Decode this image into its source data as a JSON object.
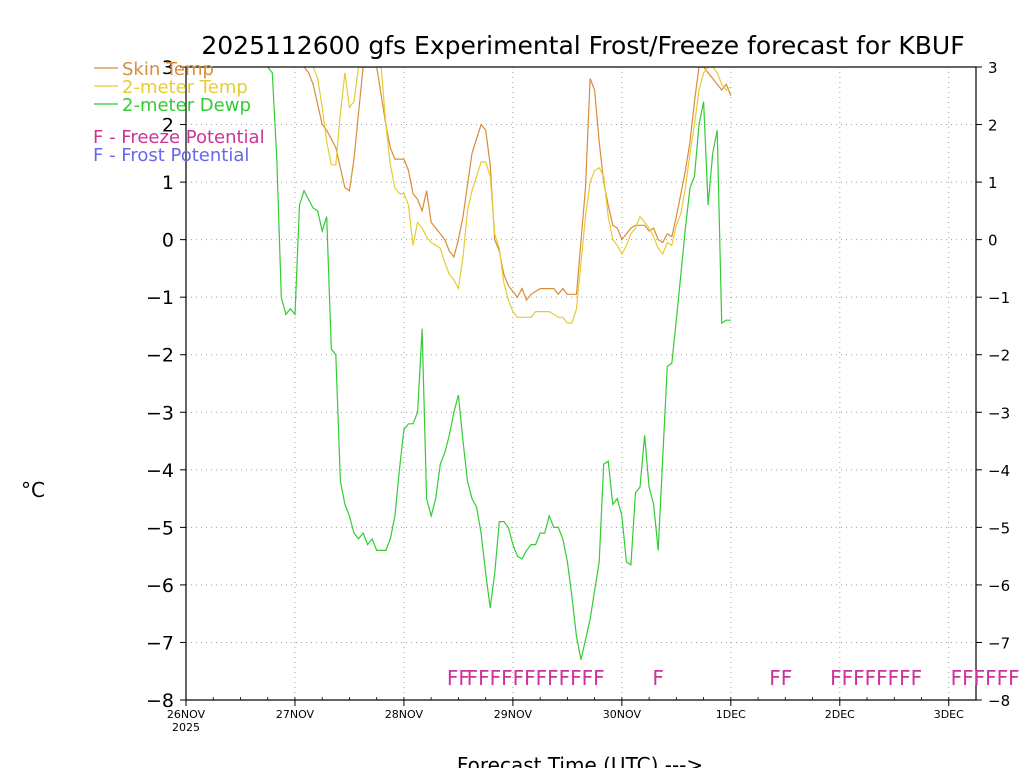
{
  "chart_data": {
    "type": "line",
    "title": "2025112600 gfs Experimental Frost/Freeze forecast for KBUF",
    "ylabel_unit": "°C",
    "xlabel": "Forecast Time (UTC) --->",
    "ylim": [
      -8,
      3
    ],
    "xlim_hours": [
      0,
      174
    ],
    "y_ticks": [
      3,
      2,
      1,
      0,
      -1,
      -2,
      -3,
      -4,
      -5,
      -6,
      -7,
      -8
    ],
    "y_tick_labels": [
      "3",
      "2",
      "1",
      "0",
      "−1",
      "−2",
      "−3",
      "−4",
      "−5",
      "−6",
      "−7",
      "−8"
    ],
    "x_ticks": [
      {
        "hour": 0,
        "label": "26NOV",
        "sublabel": "2025"
      },
      {
        "hour": 24,
        "label": "27NOV"
      },
      {
        "hour": 48,
        "label": "28NOV"
      },
      {
        "hour": 72,
        "label": "29NOV"
      },
      {
        "hour": 96,
        "label": "30NOV"
      },
      {
        "hour": 120,
        "label": "1DEC"
      },
      {
        "hour": 144,
        "label": "2DEC"
      },
      {
        "hour": 168,
        "label": "3DEC"
      }
    ],
    "legend": [
      {
        "label": "Skin Temp",
        "color": "#d98c3a"
      },
      {
        "label": "2-meter Temp",
        "color": "#e6cc33"
      },
      {
        "label": "2-meter Dewp",
        "color": "#33cc33"
      }
    ],
    "potential_legend": [
      {
        "letter": "F",
        "label": "- Freeze Potential",
        "color": "#cc3399"
      },
      {
        "letter": "F",
        "label": "- Frost Potential",
        "color": "#6666ee"
      }
    ],
    "series": [
      {
        "name": "Skin Temp",
        "color": "#d98c3a",
        "x": [
          26,
          27,
          28,
          30,
          31,
          33,
          35,
          36,
          37,
          39,
          40,
          42,
          44,
          45,
          46,
          48,
          49,
          50,
          51,
          52,
          53,
          54,
          56,
          57,
          58,
          59,
          60,
          61,
          63,
          65,
          66,
          67,
          68,
          69,
          70,
          71,
          72,
          73,
          74,
          75,
          76,
          77,
          78,
          79,
          80,
          81,
          82,
          83,
          84,
          86,
          88,
          89,
          90,
          91,
          92,
          93,
          94,
          95,
          96,
          97,
          98,
          99,
          100,
          101,
          102,
          103,
          104,
          105,
          106,
          107,
          108,
          109,
          110,
          111,
          112,
          113,
          114,
          115,
          116,
          117,
          118,
          119,
          120
        ],
        "values": [
          3,
          2.9,
          2.7,
          2.0,
          1.9,
          1.6,
          0.9,
          0.85,
          1.4,
          3.0,
          3.0,
          3.0,
          2.0,
          1.6,
          1.4,
          1.4,
          1.2,
          0.8,
          0.7,
          0.5,
          0.85,
          0.3,
          0.1,
          0.0,
          -0.2,
          -0.3,
          0.0,
          0.4,
          1.5,
          2.0,
          1.9,
          1.3,
          0.0,
          -0.2,
          -0.6,
          -0.8,
          -0.9,
          -1.0,
          -0.85,
          -1.05,
          -0.95,
          -0.9,
          -0.85,
          -0.85,
          -0.85,
          -0.85,
          -0.95,
          -0.85,
          -0.95,
          -0.95,
          0.9,
          2.8,
          2.6,
          1.7,
          1.0,
          0.6,
          0.25,
          0.2,
          0.0,
          0.1,
          0.2,
          0.25,
          0.25,
          0.25,
          0.15,
          0.2,
          0.0,
          -0.05,
          0.1,
          0.05,
          0.4,
          0.8,
          1.2,
          1.7,
          2.4,
          3.0,
          3.0,
          2.9,
          2.8,
          2.7,
          2.6,
          2.7,
          2.5
        ]
      },
      {
        "name": "2-meter Temp",
        "color": "#e6cc33",
        "x": [
          28,
          29,
          30,
          31,
          32,
          33,
          34,
          35,
          36,
          37,
          38,
          39,
          40,
          41,
          42,
          43,
          44,
          45,
          46,
          47,
          48,
          49,
          50,
          51,
          52,
          53,
          54,
          56,
          57,
          58,
          59,
          60,
          61,
          62,
          63,
          64,
          65,
          66,
          67,
          68,
          69,
          70,
          71,
          72,
          73,
          74,
          75,
          76,
          77,
          78,
          79,
          80,
          81,
          82,
          83,
          84,
          85,
          86,
          88,
          89,
          90,
          91,
          92,
          93,
          94,
          95,
          96,
          97,
          98,
          99,
          100,
          101,
          102,
          103,
          104,
          105,
          106,
          107,
          108,
          109,
          110,
          111,
          112,
          113,
          114,
          115,
          116,
          117,
          118,
          119,
          120
        ],
        "values": [
          3,
          2.8,
          2.3,
          1.7,
          1.3,
          1.3,
          2.2,
          2.9,
          2.3,
          2.4,
          3,
          3,
          3,
          3,
          3,
          3,
          2.0,
          1.3,
          0.9,
          0.8,
          0.8,
          0.6,
          -0.1,
          0.3,
          0.2,
          0.05,
          -0.05,
          -0.15,
          -0.4,
          -0.6,
          -0.7,
          -0.85,
          -0.3,
          0.5,
          0.85,
          1.1,
          1.35,
          1.35,
          1.1,
          0.1,
          -0.15,
          -0.75,
          -1.05,
          -1.25,
          -1.35,
          -1.35,
          -1.35,
          -1.35,
          -1.25,
          -1.25,
          -1.25,
          -1.25,
          -1.3,
          -1.35,
          -1.35,
          -1.45,
          -1.45,
          -1.2,
          0.4,
          1.0,
          1.2,
          1.25,
          1.1,
          0.4,
          0.0,
          -0.1,
          -0.25,
          -0.1,
          0.1,
          0.2,
          0.4,
          0.3,
          0.2,
          0.05,
          -0.15,
          -0.25,
          -0.05,
          -0.1,
          0.25,
          0.45,
          0.9,
          1.5,
          2.0,
          2.6,
          2.9,
          3,
          3,
          2.9,
          2.7,
          2.6,
          2.65
        ]
      },
      {
        "name": "2-meter Dewp",
        "color": "#33cc33",
        "x": [
          18,
          19,
          20,
          21,
          22,
          23,
          24,
          25,
          26,
          27,
          28,
          29,
          30,
          31,
          32,
          33,
          34,
          35,
          36,
          37,
          38,
          39,
          40,
          41,
          42,
          43,
          44,
          45,
          46,
          47,
          48,
          49,
          50,
          51,
          52,
          53,
          54,
          55,
          56,
          57,
          58,
          59,
          60,
          61,
          62,
          63,
          64,
          65,
          66,
          67,
          68,
          69,
          70,
          71,
          72,
          73,
          74,
          75,
          76,
          77,
          78,
          79,
          80,
          81,
          82,
          83,
          84,
          85,
          86,
          87,
          88,
          89,
          90,
          91,
          92,
          93,
          94,
          95,
          96,
          97,
          98,
          99,
          100,
          101,
          102,
          103,
          104,
          105,
          106,
          107,
          108,
          109,
          110,
          111,
          112,
          113,
          114,
          115,
          116,
          117,
          118,
          119,
          120
        ],
        "values": [
          3,
          2.9,
          1.4,
          -1.0,
          -1.3,
          -1.2,
          -1.3,
          0.6,
          0.85,
          0.7,
          0.55,
          0.5,
          0.15,
          0.4,
          -1.9,
          -2.0,
          -4.2,
          -4.6,
          -4.8,
          -5.1,
          -5.2,
          -5.1,
          -5.3,
          -5.2,
          -5.4,
          -5.4,
          -5.4,
          -5.2,
          -4.8,
          -4.0,
          -3.3,
          -3.2,
          -3.2,
          -3.0,
          -1.55,
          -4.5,
          -4.8,
          -4.5,
          -3.9,
          -3.7,
          -3.4,
          -3.0,
          -2.7,
          -3.5,
          -4.2,
          -4.5,
          -4.65,
          -5.1,
          -5.8,
          -6.4,
          -5.8,
          -4.9,
          -4.9,
          -5.0,
          -5.3,
          -5.5,
          -5.55,
          -5.4,
          -5.3,
          -5.3,
          -5.1,
          -5.1,
          -4.8,
          -5.0,
          -5.0,
          -5.2,
          -5.6,
          -6.2,
          -6.9,
          -7.3,
          -6.95,
          -6.6,
          -6.1,
          -5.6,
          -3.9,
          -3.85,
          -4.6,
          -4.5,
          -4.8,
          -5.6,
          -5.65,
          -4.4,
          -4.3,
          -3.4,
          -4.3,
          -4.6,
          -5.4,
          -3.8,
          -2.2,
          -2.15,
          -1.4,
          -0.6,
          0.2,
          0.9,
          1.1,
          2.0,
          2.4,
          0.6,
          1.5,
          1.9,
          -1.45,
          -1.4,
          -1.4
        ]
      }
    ],
    "freeze_marks": [
      {
        "hour": 60,
        "text": "FF"
      },
      {
        "hour": 77,
        "text": "FFFFFFFFFFFF"
      },
      {
        "hour": 104,
        "text": "F"
      },
      {
        "hour": 131,
        "text": "FF"
      },
      {
        "hour": 152,
        "text": "FFFFFFFF"
      },
      {
        "hour": 176,
        "text": "FFFFFF"
      }
    ]
  }
}
